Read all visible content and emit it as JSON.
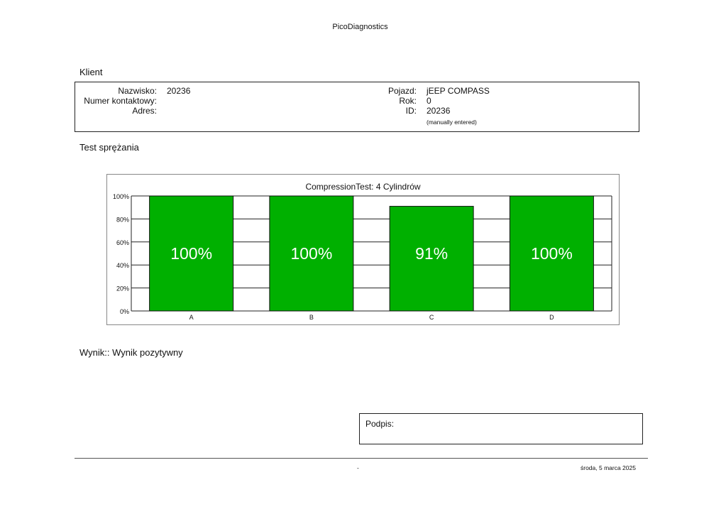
{
  "header": {
    "title": "PicoDiagnostics"
  },
  "client_section": {
    "heading": "Klient",
    "left": [
      {
        "label": "Nazwisko:",
        "value": "20236"
      },
      {
        "label": "Numer kontaktowy:",
        "value": ""
      },
      {
        "label": "Adres:",
        "value": ""
      }
    ],
    "right": [
      {
        "label": "Pojazd:",
        "value": "jEEP COMPASS"
      },
      {
        "label": "Rok:",
        "value": "0"
      },
      {
        "label": "ID:",
        "value": "20236"
      }
    ],
    "id_note": "(manually entered)"
  },
  "test_section": {
    "heading": "Test sprężania"
  },
  "chart_data": {
    "type": "bar",
    "title": "CompressionTest: 4 Cylindrów",
    "categories": [
      "A",
      "B",
      "C",
      "D"
    ],
    "values": [
      100,
      100,
      91,
      100
    ],
    "value_labels": [
      "100%",
      "100%",
      "91%",
      "100%"
    ],
    "ylim": [
      0,
      100
    ],
    "y_ticks": [
      "0%",
      "20%",
      "40%",
      "60%",
      "80%",
      "100%"
    ],
    "grid": true,
    "bar_color": "#00b000"
  },
  "result": {
    "text": "Wynik:: Wynik pozytywny"
  },
  "signature": {
    "label": "Podpis:"
  },
  "footer": {
    "center": "-",
    "date": "środa, 5 marca 2025"
  }
}
